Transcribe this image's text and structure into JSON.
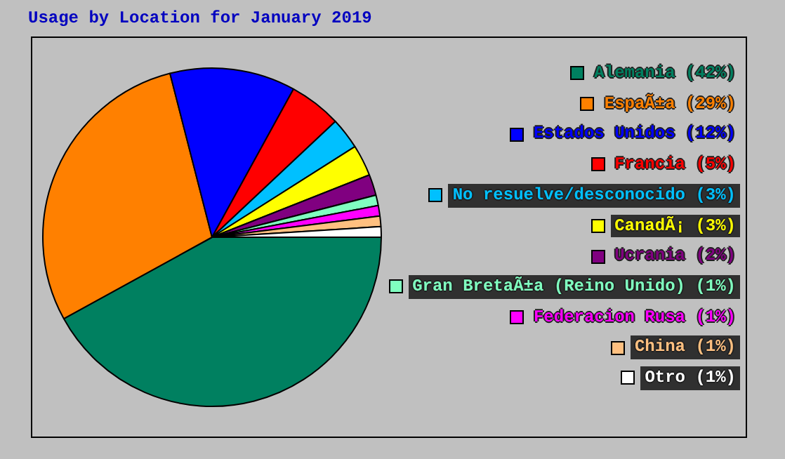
{
  "chart_data": {
    "type": "pie",
    "title": "Usage by Location for January 2019",
    "categories": [
      "Alemania (42%)",
      "EspaÃ±a (29%)",
      "Estados Unidos (12%)",
      "Francia (5%)",
      "No resuelve/desconocido (3%)",
      "CanadÃ¡ (3%)",
      "Ucrania (2%)",
      "Gran BretaÃ±a (Reino Unido) (1%)",
      "Federacion Rusa (1%)",
      "China (1%)",
      "Otro (1%)"
    ],
    "values": [
      42,
      29,
      12,
      5,
      3,
      3,
      2,
      1,
      1,
      1,
      1
    ],
    "colors": [
      "#008060",
      "#ff8000",
      "#0000ff",
      "#ff0000",
      "#00c0ff",
      "#ffff00",
      "#800080",
      "#80ffc0",
      "#ff00ff",
      "#ffc080",
      "#ffffff"
    ],
    "legend": "right"
  }
}
